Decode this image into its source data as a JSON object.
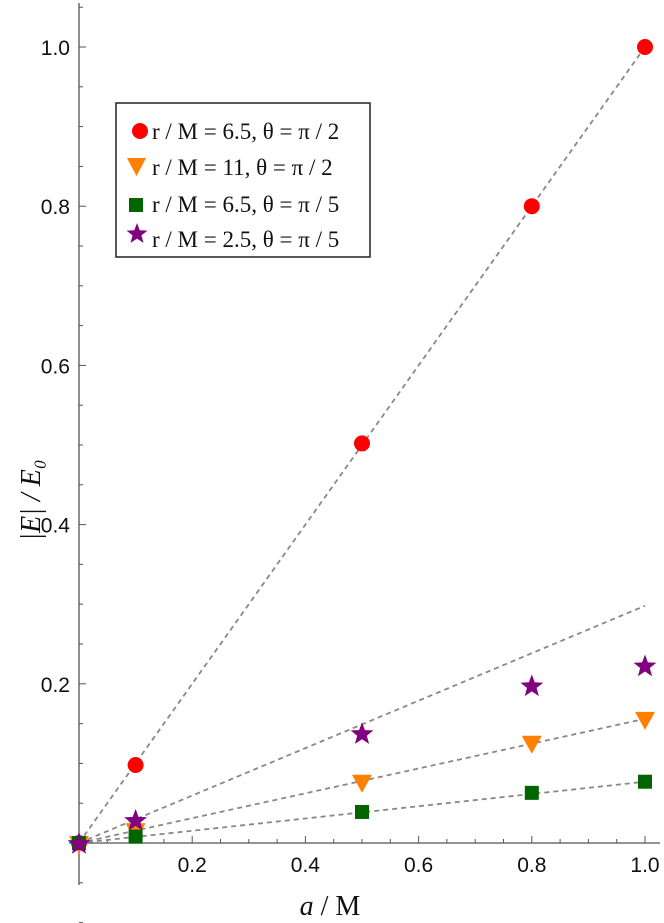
{
  "chart_data": {
    "type": "scatter",
    "title": "",
    "xlabel": "a / M",
    "ylabel": "|E| / E0",
    "xlim": [
      0,
      1.0
    ],
    "ylim": [
      0,
      1.05
    ],
    "grid": false,
    "legend_position": "upper-left (inset, boxed)",
    "x_ticks": [
      "0.2",
      "0.4",
      "0.6",
      "0.8",
      "1.0"
    ],
    "y_ticks": [
      "0.2",
      "0.4",
      "0.6",
      "0.8",
      "1.0"
    ],
    "x": [
      0,
      0.1,
      0.5,
      0.8,
      1.0
    ],
    "series": [
      {
        "name": "r / M = 6.5, θ = π / 2",
        "marker": "circle",
        "color": "#ff0000",
        "values": [
          0,
          0.098,
          0.502,
          0.8,
          1.0
        ],
        "fit_slope": 1.0
      },
      {
        "name": "r / M = 11, θ = π / 2",
        "marker": "triangle-down",
        "color": "#ff8000",
        "values": [
          0,
          0.016,
          0.077,
          0.126,
          0.156
        ],
        "fit_slope": 0.156
      },
      {
        "name": "r / M = 6.5, θ = π / 5",
        "marker": "square",
        "color": "#006400",
        "values": [
          0,
          0.008,
          0.039,
          0.063,
          0.077
        ],
        "fit_slope": 0.077
      },
      {
        "name": "r / M = 2.5, θ = π / 5",
        "marker": "star",
        "color": "#800080",
        "values": [
          0,
          0.029,
          0.138,
          0.198,
          0.223
        ],
        "fit_slope": 0.298
      }
    ],
    "fit_lines": "dashed gray linear fits through origin, extending to a/M = 1.0"
  },
  "axes": {
    "x_label_main": "a",
    "x_label_rest": " / M",
    "y_label": "|E| / E₀"
  },
  "legend": {
    "items": [
      {
        "label": "r / M = 6.5, θ = π / 2"
      },
      {
        "label": "r / M = 11, θ = π / 2"
      },
      {
        "label": "r / M = 6.5, θ = π / 5"
      },
      {
        "label": "r / M = 2.5, θ = π / 5"
      }
    ]
  }
}
